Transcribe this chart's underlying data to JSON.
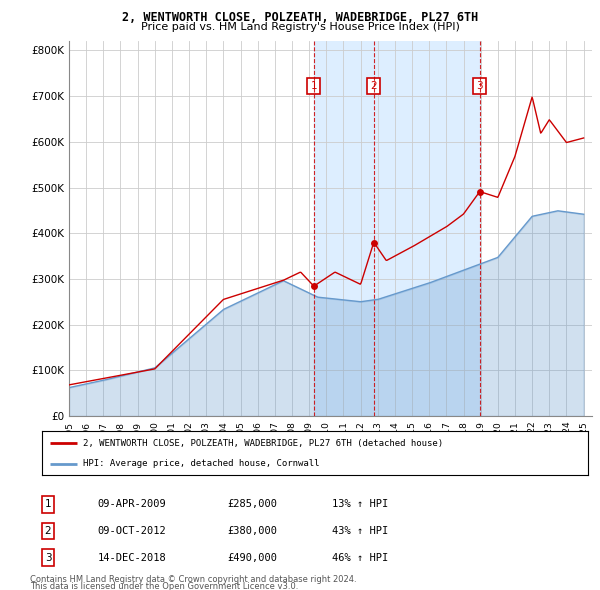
{
  "title": "2, WENTWORTH CLOSE, POLZEATH, WADEBRIDGE, PL27 6TH",
  "subtitle": "Price paid vs. HM Land Registry's House Price Index (HPI)",
  "hpi_label": "HPI: Average price, detached house, Cornwall",
  "property_label": "2, WENTWORTH CLOSE, POLZEATH, WADEBRIDGE, PL27 6TH (detached house)",
  "footer_line1": "Contains HM Land Registry data © Crown copyright and database right 2024.",
  "footer_line2": "This data is licensed under the Open Government Licence v3.0.",
  "transactions": [
    {
      "num": 1,
      "date": "09-APR-2009",
      "price": 285000,
      "year": 2009.27,
      "pct": "13%",
      "dir": "↑"
    },
    {
      "num": 2,
      "date": "09-OCT-2012",
      "price": 380000,
      "year": 2012.77,
      "pct": "43%",
      "dir": "↑"
    },
    {
      "num": 3,
      "date": "14-DEC-2018",
      "price": 490000,
      "year": 2018.95,
      "pct": "46%",
      "dir": "↑"
    }
  ],
  "ylim": [
    0,
    820000
  ],
  "xlim_start": 1995.0,
  "xlim_end": 2025.5,
  "red_color": "#cc0000",
  "blue_color": "#6699cc",
  "shaded_color": "#ddeeff",
  "grid_color": "#cccccc",
  "bg_color": "#ffffff"
}
